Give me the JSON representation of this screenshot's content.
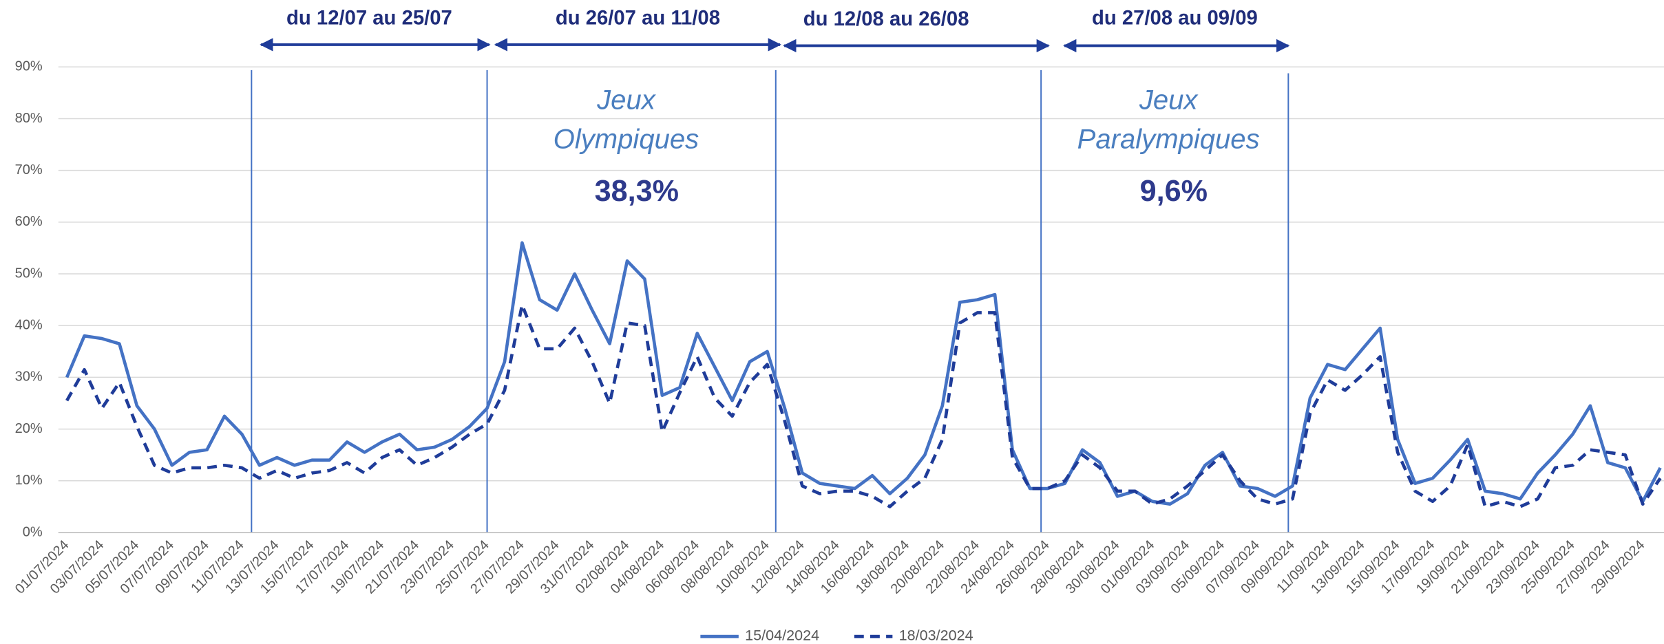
{
  "chart_data": {
    "type": "line",
    "categories": [
      "01/07/2024",
      null,
      "03/07/2024",
      null,
      "05/07/2024",
      null,
      "07/07/2024",
      null,
      "09/07/2024",
      null,
      "11/07/2024",
      null,
      "13/07/2024",
      null,
      "15/07/2024",
      null,
      "17/07/2024",
      null,
      "19/07/2024",
      null,
      "21/07/2024",
      null,
      "23/07/2024",
      null,
      "25/07/2024",
      null,
      "27/07/2024",
      null,
      "29/07/2024",
      null,
      "31/07/2024",
      null,
      "02/08/2024",
      null,
      "04/08/2024",
      null,
      "06/08/2024",
      null,
      "08/08/2024",
      null,
      "10/08/2024",
      null,
      "12/08/2024",
      null,
      "14/08/2024",
      null,
      "16/08/2024",
      null,
      "18/08/2024",
      null,
      "20/08/2024",
      null,
      "22/08/2024",
      null,
      "24/08/2024",
      null,
      "26/08/2024",
      null,
      "28/08/2024",
      null,
      "30/08/2024",
      null,
      "01/09/2024",
      null,
      "03/09/2024",
      null,
      "05/09/2024",
      null,
      "07/09/2024",
      null,
      "09/09/2024",
      null,
      "11/09/2024",
      null,
      "13/09/2024",
      null,
      "15/09/2024",
      null,
      "17/09/2024",
      null,
      "19/09/2024",
      null,
      "21/09/2024",
      null,
      "23/09/2024",
      null,
      "25/09/2024",
      null,
      "27/09/2024",
      null,
      "29/09/2024",
      null
    ],
    "series": [
      {
        "name": "15/04/2024",
        "color": "#4472c4",
        "dash": false,
        "values": [
          30,
          38,
          37.5,
          36.5,
          24.5,
          20,
          13,
          15.5,
          16,
          22.5,
          19,
          13,
          14.5,
          13,
          14,
          14,
          17.5,
          15.5,
          17.5,
          19,
          16,
          16.5,
          18,
          20.5,
          24,
          33,
          56,
          45,
          43,
          50,
          43,
          36.5,
          52.5,
          49,
          26.5,
          28,
          38.5,
          32,
          25.5,
          33,
          35,
          24,
          11.5,
          9.5,
          9,
          8.5,
          11,
          7.5,
          10.5,
          15,
          24.5,
          44.5,
          45,
          46,
          16,
          8.5,
          8.5,
          9.5,
          16,
          13.5,
          7,
          8,
          6,
          5.5,
          7.5,
          13,
          15.5,
          9,
          8.5,
          7,
          9,
          26,
          32.5,
          31.5,
          35.5,
          39.5,
          18,
          9.5,
          10.5,
          14,
          18,
          8,
          7.5,
          6.5,
          11.5,
          15,
          19,
          24.5,
          13.5,
          12.5,
          6,
          12.5
        ]
      },
      {
        "name": "18/03/2024",
        "color": "#1f3c99",
        "dash": true,
        "values": [
          25.5,
          31.5,
          24,
          29,
          20.5,
          13,
          11.5,
          12.5,
          12.5,
          13,
          12.5,
          10.5,
          12,
          10.5,
          11.5,
          12,
          13.5,
          11.5,
          14.5,
          16,
          13,
          14.5,
          16.5,
          19,
          21,
          27.5,
          44,
          35.5,
          35.5,
          39.5,
          33,
          25,
          40.5,
          40,
          19.5,
          27,
          34,
          26,
          22.5,
          29,
          32.5,
          21.5,
          9,
          7.5,
          8,
          8,
          7,
          5,
          8,
          10.5,
          18,
          40.5,
          42.5,
          42.5,
          14.5,
          8.5,
          8.5,
          10,
          15,
          12.5,
          8,
          8,
          5.5,
          6.5,
          9,
          12,
          15,
          10,
          6.5,
          5.5,
          6.5,
          23,
          29.5,
          27.5,
          30.5,
          34,
          15.5,
          8,
          6,
          9,
          17,
          5,
          6,
          5,
          6.5,
          12.5,
          13,
          16,
          15.5,
          15,
          5.5,
          10.5
        ]
      }
    ],
    "ylim": [
      0,
      90
    ],
    "yticks": [
      {
        "value": 0,
        "label": "0%"
      },
      {
        "value": 10,
        "label": "10%"
      },
      {
        "value": 20,
        "label": "20%"
      },
      {
        "value": 30,
        "label": "30%"
      },
      {
        "value": 40,
        "label": "40%"
      },
      {
        "value": 50,
        "label": "50%"
      },
      {
        "value": 60,
        "label": "60%"
      },
      {
        "value": 70,
        "label": "70%"
      },
      {
        "value": 80,
        "label": "80%"
      },
      {
        "value": 90,
        "label": "90%"
      }
    ],
    "grid": true,
    "legend": "bottom",
    "periods": [
      "du 12/07 au 25/07",
      "du 26/07 au 11/08",
      "du 12/08 au 26/08",
      "du 27/08 au 09/09"
    ],
    "annotations": [
      {
        "lines": [
          "Jeux",
          "Olympiques"
        ],
        "value_label": "38,3%"
      },
      {
        "lines": [
          "Jeux",
          "Paralympiques"
        ],
        "value_label": "9,6%"
      }
    ]
  }
}
